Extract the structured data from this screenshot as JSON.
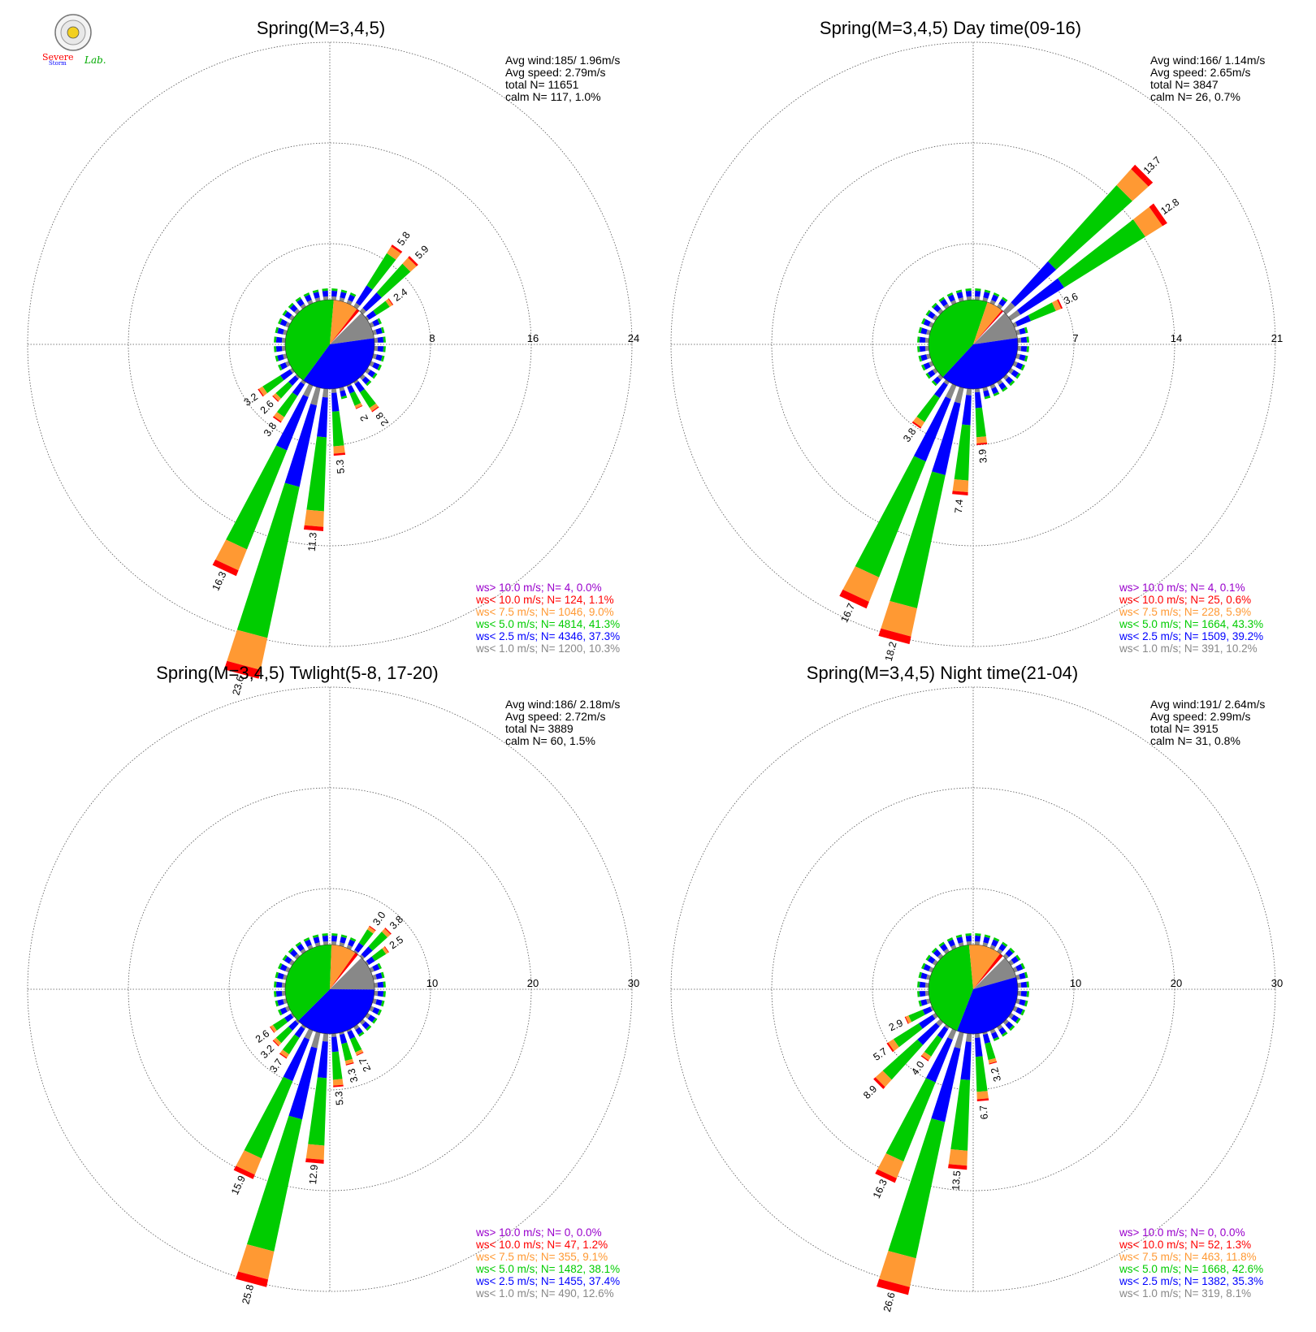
{
  "logo": {
    "text_1": "Severe",
    "text_2": "Storm",
    "text_3": "Lab."
  },
  "colors": {
    "gt10": "#9900cc",
    "lt10": "#ff0000",
    "lt7_5": "#ff9933",
    "lt5": "#00cc00",
    "lt2_5": "#0000ff",
    "lt1": "#888888",
    "calm_white": "#ffffff"
  },
  "chart_data": [
    {
      "type": "polar-bar",
      "title": "Spring(M=3,4,5)",
      "stats": {
        "avg_wind": "Avg wind:185/ 1.96m/s",
        "avg_speed": "Avg speed: 2.79m/s",
        "total": "total N=       11651",
        "calm": "calm N=    117,   1.0%"
      },
      "rings": [
        "8",
        "16",
        "24"
      ],
      "rmax": 24,
      "labeled_bars": [
        {
          "dir": 35,
          "value": "5.8"
        },
        {
          "dir": 45,
          "value": "5.9"
        },
        {
          "dir": 55,
          "value": "2.4"
        },
        {
          "dir": 145,
          "value": "2.8"
        },
        {
          "dir": 155,
          "value": "2"
        },
        {
          "dir": 175,
          "value": "5.3"
        },
        {
          "dir": 185,
          "value": "11.3"
        },
        {
          "dir": 195,
          "value": "23.6"
        },
        {
          "dir": 205,
          "value": "16.3"
        },
        {
          "dir": 215,
          "value": "3.8"
        },
        {
          "dir": 225,
          "value": "2.6"
        },
        {
          "dir": 235,
          "value": "3.2"
        }
      ],
      "legend": [
        {
          "label": "ws> 10.0 m/s; N=",
          "n": "4,",
          "pct": "0.0%"
        },
        {
          "label": "ws< 10.0 m/s; N=",
          "n": "124,",
          "pct": "1.1%"
        },
        {
          "label": "ws<  7.5 m/s; N=",
          "n": "1046,",
          "pct": "9.0%"
        },
        {
          "label": "ws<  5.0 m/s; N=",
          "n": "4814,",
          "pct": "41.3%"
        },
        {
          "label": "ws<  2.5 m/s; N=",
          "n": "4346,",
          "pct": "37.3%"
        },
        {
          "label": "ws<  1.0 m/s; N=",
          "n": "1200,",
          "pct": "10.3%"
        }
      ]
    },
    {
      "type": "polar-bar",
      "title": "Spring(M=3,4,5) Day time(09-16)",
      "stats": {
        "avg_wind": "Avg wind:166/ 1.14m/s",
        "avg_speed": "Avg speed: 2.65m/s",
        "total": "total N=        3847",
        "calm": "calm N=     26,   0.7%"
      },
      "rings": [
        "7",
        "14",
        "21"
      ],
      "rmax": 21,
      "labeled_bars": [
        {
          "dir": 45,
          "value": "13.7"
        },
        {
          "dir": 55,
          "value": "12.8"
        },
        {
          "dir": 65,
          "value": "3.6"
        },
        {
          "dir": 175,
          "value": "3.9"
        },
        {
          "dir": 185,
          "value": "7.4"
        },
        {
          "dir": 195,
          "value": "18.2"
        },
        {
          "dir": 205,
          "value": "16.7"
        },
        {
          "dir": 215,
          "value": "3.8"
        }
      ],
      "legend": [
        {
          "label": "ws> 10.0 m/s; N=",
          "n": "4,",
          "pct": "0.1%"
        },
        {
          "label": "ws< 10.0 m/s; N=",
          "n": "25,",
          "pct": "0.6%"
        },
        {
          "label": "ws<  7.5 m/s; N=",
          "n": "228,",
          "pct": "5.9%"
        },
        {
          "label": "ws<  5.0 m/s; N=",
          "n": "1664,",
          "pct": "43.3%"
        },
        {
          "label": "ws<  2.5 m/s; N=",
          "n": "1509,",
          "pct": "39.2%"
        },
        {
          "label": "ws<  1.0 m/s; N=",
          "n": "391,",
          "pct": "10.2%"
        }
      ]
    },
    {
      "type": "polar-bar",
      "title": "Spring(M=3,4,5) Twlight(5-8, 17-20)",
      "stats": {
        "avg_wind": "Avg wind:186/ 2.18m/s",
        "avg_speed": "Avg speed: 2.72m/s",
        "total": "total N=        3889",
        "calm": "calm N=     60,   1.5%"
      },
      "rings": [
        "10",
        "20",
        "30"
      ],
      "rmax": 30,
      "labeled_bars": [
        {
          "dir": 35,
          "value": "3.0"
        },
        {
          "dir": 45,
          "value": "3.8"
        },
        {
          "dir": 55,
          "value": "2.5"
        },
        {
          "dir": 155,
          "value": "2.7"
        },
        {
          "dir": 165,
          "value": "3.3"
        },
        {
          "dir": 175,
          "value": "5.3"
        },
        {
          "dir": 185,
          "value": "12.9"
        },
        {
          "dir": 195,
          "value": "25.8"
        },
        {
          "dir": 205,
          "value": "15.9"
        },
        {
          "dir": 215,
          "value": "3.7"
        },
        {
          "dir": 225,
          "value": "3.2"
        },
        {
          "dir": 235,
          "value": "2.6"
        }
      ],
      "legend": [
        {
          "label": "ws> 10.0 m/s; N=",
          "n": "0,",
          "pct": "0.0%"
        },
        {
          "label": "ws< 10.0 m/s; N=",
          "n": "47,",
          "pct": "1.2%"
        },
        {
          "label": "ws<  7.5 m/s; N=",
          "n": "355,",
          "pct": "9.1%"
        },
        {
          "label": "ws<  5.0 m/s; N=",
          "n": "1482,",
          "pct": "38.1%"
        },
        {
          "label": "ws<  2.5 m/s; N=",
          "n": "1455,",
          "pct": "37.4%"
        },
        {
          "label": "ws<  1.0 m/s; N=",
          "n": "490,",
          "pct": "12.6%"
        }
      ]
    },
    {
      "type": "polar-bar",
      "title": "Spring(M=3,4,5) Night time(21-04)",
      "stats": {
        "avg_wind": "Avg wind:191/ 2.64m/s",
        "avg_speed": "Avg speed: 2.99m/s",
        "total": "total N=        3915",
        "calm": "calm N=     31,   0.8%"
      },
      "rings": [
        "10",
        "20",
        "30"
      ],
      "rmax": 30,
      "labeled_bars": [
        {
          "dir": 165,
          "value": "3.2"
        },
        {
          "dir": 175,
          "value": "6.7"
        },
        {
          "dir": 185,
          "value": "13.5"
        },
        {
          "dir": 195,
          "value": "26.6"
        },
        {
          "dir": 205,
          "value": "16.3"
        },
        {
          "dir": 215,
          "value": "4.0"
        },
        {
          "dir": 225,
          "value": "8.9"
        },
        {
          "dir": 235,
          "value": "5.7"
        },
        {
          "dir": 245,
          "value": "2.9"
        }
      ],
      "legend": [
        {
          "label": "ws> 10.0 m/s; N=",
          "n": "0,",
          "pct": "0.0%"
        },
        {
          "label": "ws< 10.0 m/s; N=",
          "n": "52,",
          "pct": "1.3%"
        },
        {
          "label": "ws<  7.5 m/s; N=",
          "n": "463,",
          "pct": "11.8%"
        },
        {
          "label": "ws<  5.0 m/s; N=",
          "n": "1668,",
          "pct": "42.6%"
        },
        {
          "label": "ws<  2.5 m/s; N=",
          "n": "1382,",
          "pct": "35.3%"
        },
        {
          "label": "ws<  1.0 m/s; N=",
          "n": "319,",
          "pct": "8.1%"
        }
      ]
    }
  ]
}
